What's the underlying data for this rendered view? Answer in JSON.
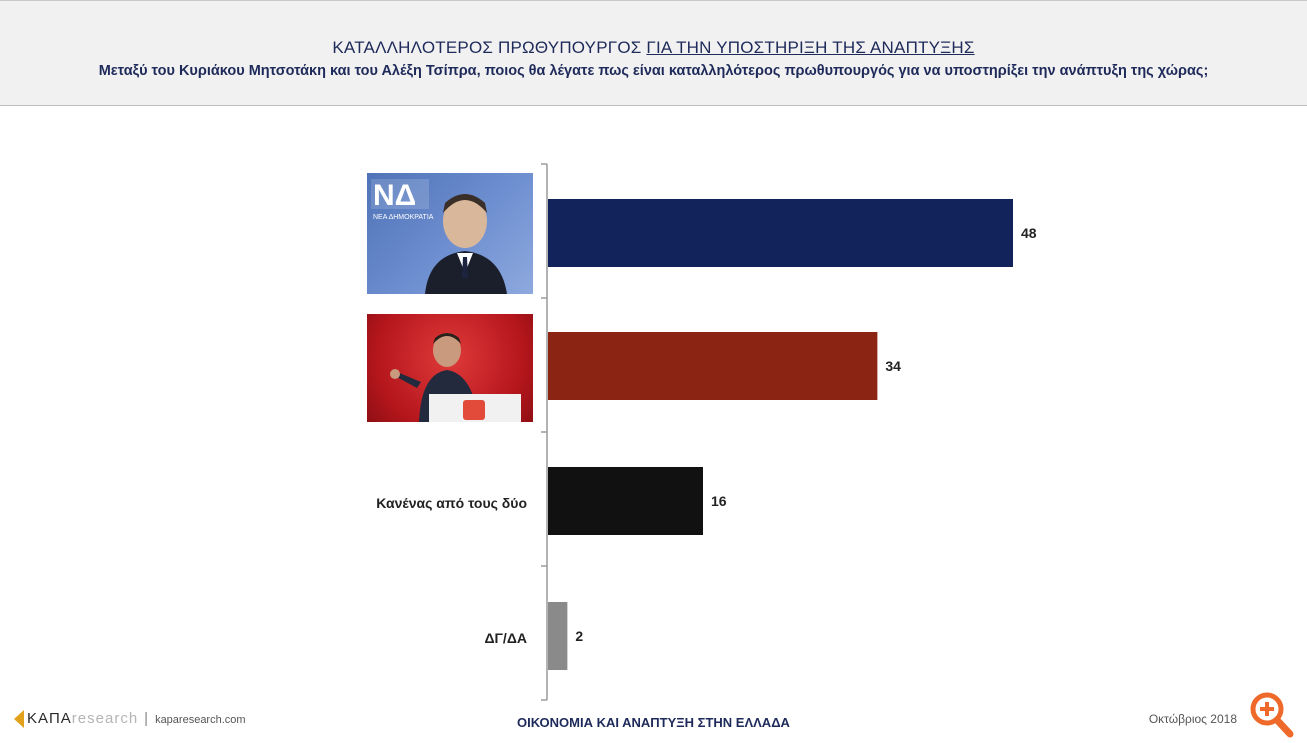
{
  "header": {
    "title_part1": "ΚΑΤΑΛΛΗΛΟΤΕΡΟΣ ΠΡΩΘΥΠΟΥΡΓΟΣ ",
    "title_part2": "ΓΙΑ ΤΗΝ ΥΠΟΣΤΗΡΙΞΗ ΤΗΣ ΑΝΑΠΤΥΞΗΣ",
    "subtitle": "Μεταξύ του Κυριάκου Μητσοτάκη και του Αλέξη Τσίπρα, ποιος θα λέγατε πως είναι καταλληλότερος πρωθυπουργός για να υποστηρίξει την ανάπτυξη της χώρας;"
  },
  "chart_data": {
    "type": "bar",
    "orientation": "horizontal",
    "categories": [
      "",
      "",
      "Κανένας από τους δύο",
      "ΔΓ/ΔΑ"
    ],
    "values": [
      48,
      34,
      16,
      2
    ],
    "colors": [
      "#12235c",
      "#8b2412",
      "#111111",
      "#8a8a8a"
    ],
    "title": "ΚΑΤΑΛΛΗΛΟΤΕΡΟΣ ΠΡΩΘΥΠΟΥΡΓΟΣ ΓΙΑ ΤΗΝ ΥΠΟΣΤΗΡΙΞΗ ΤΗΣ ΑΝΑΠΤΥΞΗΣ",
    "xlim": [
      0,
      50
    ],
    "grid": false,
    "legend": "none"
  },
  "photos": {
    "nd_logo_text": "ΝΔ",
    "nd_logo_sub": "ΝΕΑ ΔΗΜΟΚΡΑΤΙΑ"
  },
  "footer": {
    "logo_main": "KAПA",
    "logo_faded": "research",
    "site": "kaparesearch.com",
    "center": "ΟΙΚΟΝΟΜΙΑ ΚΑΙ ΑΝΑΠΤΥΞΗ ΣΤΗΝ ΕΛΛΑΔΑ",
    "date": "Οκτώβριος 2018"
  },
  "icons": {
    "zoom": "zoom-in-icon"
  }
}
